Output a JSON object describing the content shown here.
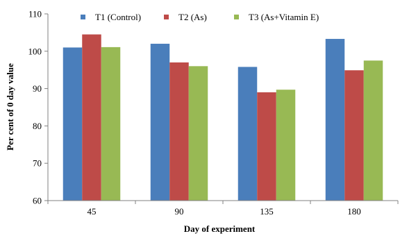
{
  "chart_data": {
    "type": "bar",
    "title": "",
    "xlabel": "Day of experiment",
    "ylabel": "Per cent of 0 day value",
    "categories": [
      "45",
      "90",
      "135",
      "180"
    ],
    "ylim": [
      60,
      110
    ],
    "yticks": [
      "60",
      "70",
      "80",
      "90",
      "100",
      "110"
    ],
    "grid": false,
    "legend_position": "top",
    "series": [
      {
        "name": "T1 (Control)",
        "color": "#4a7ebb",
        "values": [
          101.0,
          102.0,
          95.8,
          103.3
        ]
      },
      {
        "name": "T2 (As)",
        "color": "#be4b48",
        "values": [
          104.5,
          97.0,
          89.0,
          94.9
        ]
      },
      {
        "name": "T3 (As+Vitamin E)",
        "color": "#98b954",
        "values": [
          101.1,
          96.0,
          89.7,
          97.5
        ]
      }
    ]
  }
}
